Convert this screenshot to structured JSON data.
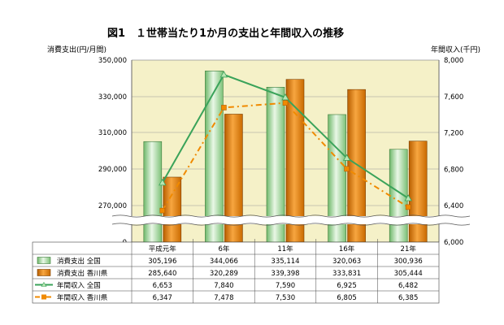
{
  "chart_data": {
    "type": "bar",
    "title": "図1　１世帯当たり1か月の支出と年間収入の推移",
    "ylabel_left": "消費支出(円/月間)",
    "ylabel_right": "年間収入(千円)",
    "categories": [
      "平成元年",
      "6年",
      "11年",
      "16年",
      "21年"
    ],
    "left_axis": {
      "ticks": [
        "350,000",
        "330,000",
        "310,000",
        "290,000",
        "270,000",
        "0"
      ],
      "range": [
        250000,
        350000
      ],
      "broken": true
    },
    "right_axis": {
      "ticks": [
        "8,000",
        "7,600",
        "7,200",
        "6,800",
        "6,400",
        "6,000"
      ],
      "range": [
        6000,
        8000
      ]
    },
    "series": [
      {
        "name": "消費支出 全国",
        "kind": "bar",
        "axis": "left",
        "color": "#8fcf8a",
        "values": [
          305196,
          344066,
          335114,
          320063,
          300936
        ],
        "labels": [
          "305,196",
          "344,066",
          "335,114",
          "320,063",
          "300,936"
        ]
      },
      {
        "name": "消費支出 香川県",
        "kind": "bar",
        "axis": "left",
        "color": "#e07b00",
        "values": [
          285640,
          320289,
          339398,
          333831,
          305444
        ],
        "labels": [
          "285,640",
          "320,289",
          "339,398",
          "333,831",
          "305,444"
        ]
      },
      {
        "name": "年間収入 全国",
        "kind": "line",
        "axis": "right",
        "color": "#3aa35a",
        "values": [
          6653,
          7840,
          7590,
          6925,
          6482
        ],
        "labels": [
          "6,653",
          "7,840",
          "7,590",
          "6,925",
          "6,482"
        ]
      },
      {
        "name": "年間収入 香川県",
        "kind": "line",
        "axis": "right",
        "color": "#f08a00",
        "values": [
          6347,
          7478,
          7530,
          6805,
          6385
        ],
        "labels": [
          "6,347",
          "7,478",
          "7,530",
          "6,805",
          "6,385"
        ]
      }
    ],
    "plot_background": "#f5f1c8",
    "grid": true,
    "legend_placement": "data-table"
  }
}
